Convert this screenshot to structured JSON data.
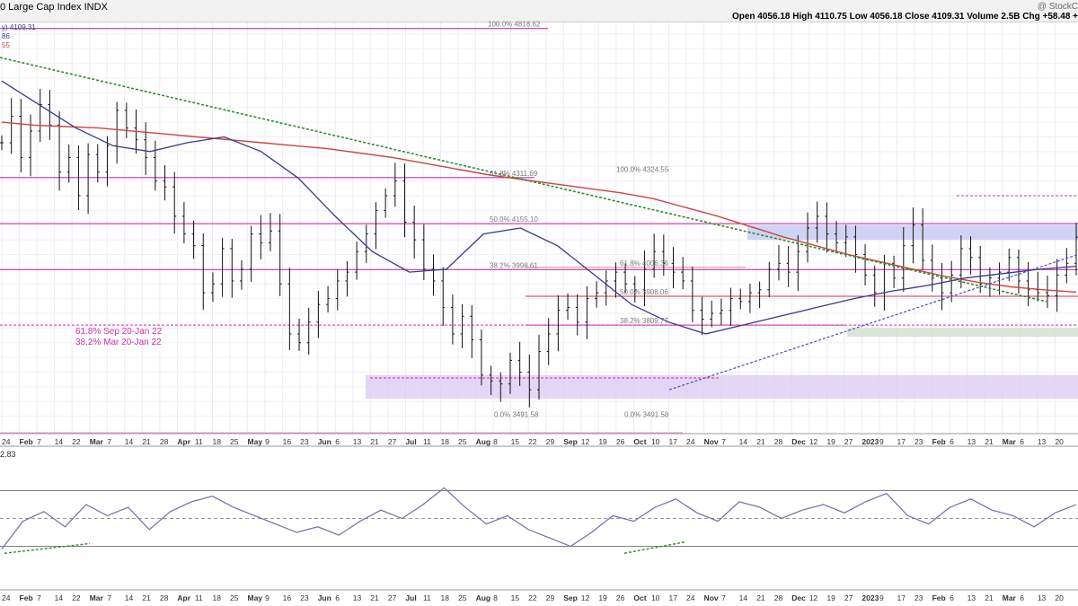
{
  "header": {
    "title": "0 Large Cap Index INDX",
    "brand": "@ StockC",
    "ohlc": [
      {
        "k": "Open",
        "v": "4056.18"
      },
      {
        "k": "High",
        "v": "4110.75"
      },
      {
        "k": "Low",
        "v": "4056.18"
      },
      {
        "k": "Close",
        "v": "4109.31"
      },
      {
        "k": "Volume",
        "v": "2.5B"
      },
      {
        "k": "Chg",
        "v": "+58.48 +"
      }
    ]
  },
  "legend": {
    "price_line": "y) 4109.31",
    "ma_short": "86",
    "ma_long": "55"
  },
  "rsi_label": "2.83",
  "fib_note": {
    "line1": "61.8% Sep 20-Jan 22",
    "line2": "38.2% Mar 20-Jan 22"
  },
  "fib_labels_left": [
    {
      "text": "100.0% 4818.62",
      "price": 4818.62
    },
    {
      "text": "61.8% 4311.69",
      "price": 4311.69
    },
    {
      "text": "50.0% 4155.10",
      "price": 4155.1
    },
    {
      "text": "38.2% 3998.61",
      "price": 3998.61
    },
    {
      "text": "0.0% 3491.58",
      "price": 3491.58
    }
  ],
  "fib_labels_right": [
    {
      "text": "100.0% 4324.55",
      "price": 4324.55
    },
    {
      "text": "61.8% 4006.36",
      "price": 4006.36
    },
    {
      "text": "50.0% 3908.06",
      "price": 3908.06
    },
    {
      "text": "38.2% 3809.77",
      "price": 3809.77
    },
    {
      "text": "0.0% 3491.58",
      "price": 3491.58
    }
  ],
  "colors": {
    "price_bar": "#111111",
    "ma_50": "#3a3a8c",
    "ma_200": "#cc4444",
    "trend": "#2e8b2e",
    "support": "#4a4ad0",
    "fib": "#cc33aa",
    "zone_purple": "#d9c6f2",
    "zone_blue": "#c8ccf2",
    "zone_green": "#cfe0cf",
    "rsi_line": "#6b6fa8"
  },
  "chart_data": {
    "type": "line",
    "title": "0 Large Cap Index INDX",
    "x_tick_labels": [
      "24",
      "Feb",
      "7",
      "14",
      "22",
      "Mar",
      "7",
      "14",
      "21",
      "28",
      "Apr",
      "11",
      "18",
      "25",
      "May",
      "9",
      "16",
      "23",
      "Jun",
      "6",
      "13",
      "21",
      "27",
      "Jul",
      "11",
      "18",
      "25",
      "Aug",
      "8",
      "15",
      "22",
      "29",
      "Sep",
      "12",
      "19",
      "26",
      "Oct",
      "10",
      "17",
      "24",
      "Nov",
      "7",
      "14",
      "21",
      "28",
      "Dec",
      "12",
      "19",
      "27",
      "2023",
      "9",
      "17",
      "23",
      "Feb",
      "6",
      "13",
      "21",
      "Mar",
      "6",
      "13",
      "20"
    ],
    "ylim": [
      3450,
      4830
    ],
    "price_close": [
      4430,
      4520,
      4380,
      4470,
      4560,
      4490,
      4330,
      4380,
      4250,
      4390,
      4330,
      4420,
      4540,
      4480,
      4440,
      4380,
      4300,
      4280,
      4180,
      4120,
      4080,
      3920,
      3950,
      4070,
      3960,
      4000,
      4120,
      4090,
      4130,
      3950,
      3780,
      3750,
      3820,
      3880,
      3900,
      3960,
      3990,
      4060,
      4120,
      4200,
      4250,
      4300,
      4160,
      4100,
      4000,
      3960,
      3870,
      3780,
      3840,
      3760,
      3640,
      3620,
      3610,
      3690,
      3650,
      3590,
      3720,
      3780,
      3860,
      3870,
      3820,
      3900,
      3920,
      3960,
      3990,
      3950,
      3930,
      4000,
      4060,
      4020,
      3990,
      3960,
      3860,
      3830,
      3850,
      3860,
      3900,
      3890,
      3920,
      3930,
      4000,
      4020,
      3990,
      4060,
      4140,
      4180,
      4120,
      4090,
      4110,
      4050,
      3980,
      3920,
      4020,
      3970,
      4080,
      4150,
      4030,
      3970,
      3920,
      3980,
      4070,
      4040,
      3950,
      3970,
      3990,
      4040,
      3960,
      3930,
      3920,
      3910,
      3980,
      4020,
      4109
    ],
    "ma_200": [
      4500,
      4490,
      4485,
      4480,
      4470,
      4460,
      4450,
      4440,
      4430,
      4420,
      4410,
      4395,
      4380,
      4360,
      4340,
      4320,
      4305,
      4290,
      4275,
      4260,
      4240,
      4210,
      4180,
      4145,
      4110,
      4080,
      4050,
      4025,
      4000,
      3975,
      3955,
      3940,
      3930,
      3922
    ],
    "ma_50": [
      4640,
      4560,
      4480,
      4420,
      4400,
      4430,
      4450,
      4400,
      4310,
      4180,
      4060,
      3990,
      4000,
      4120,
      4140,
      4080,
      3980,
      3880,
      3820,
      3780,
      3810,
      3840,
      3870,
      3900,
      3925,
      3945,
      3970,
      3985,
      4000,
      4010
    ],
    "rsi": [
      28,
      48,
      55,
      44,
      60,
      52,
      58,
      42,
      55,
      62,
      66,
      58,
      52,
      46,
      40,
      44,
      38,
      48,
      56,
      50,
      60,
      72,
      58,
      46,
      52,
      42,
      36,
      30,
      40,
      52,
      48,
      58,
      64,
      54,
      48,
      62,
      58,
      50,
      56,
      60,
      54,
      62,
      68,
      52,
      46,
      58,
      64,
      56,
      52,
      44,
      54,
      60
    ]
  }
}
